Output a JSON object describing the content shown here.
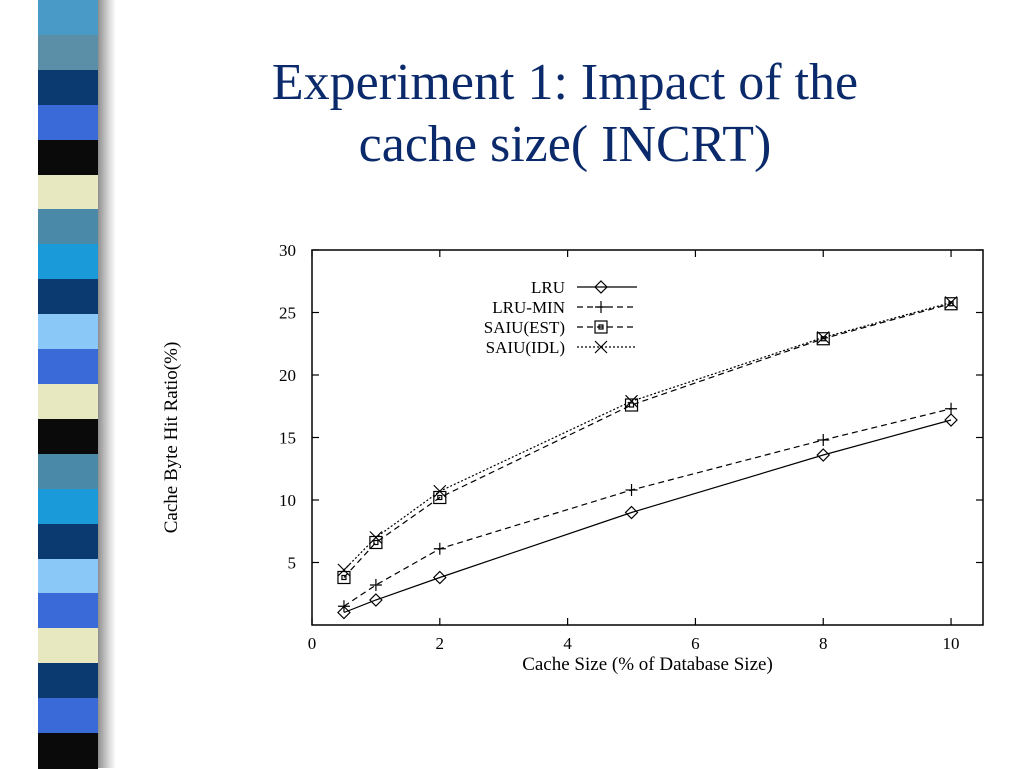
{
  "slide": {
    "title": "Experiment 1: Impact of the\ncache size( INCRT)"
  },
  "stripes": [
    "#4a9ac8",
    "#5b8fa8",
    "#0a3a70",
    "#3a6ad8",
    "#0a0a0a",
    "#e8e8c0",
    "#4a8aa8",
    "#1a9ad8",
    "#0a3a70",
    "#8ac8f8",
    "#3a6ad8",
    "#e8e8c0",
    "#0a0a0a",
    "#4a8aa8",
    "#1a9ad8",
    "#0a3a70",
    "#8ac8f8",
    "#3a6ad8",
    "#e8e8c0",
    "#0a3a70",
    "#3a6ad8",
    "#0a0a0a"
  ],
  "chart_data": {
    "type": "line",
    "title": "",
    "xlabel": "Cache Size (% of Database Size)",
    "ylabel": "Cache Byte Hit Ratio(%)",
    "xlim": [
      0,
      10.5
    ],
    "ylim": [
      0,
      30
    ],
    "xticks": [
      0,
      2,
      4,
      6,
      8,
      10
    ],
    "yticks": [
      5,
      10,
      15,
      20,
      25,
      30
    ],
    "grid": false,
    "legend_position": "top-left",
    "x": [
      0.5,
      1,
      2,
      5,
      8,
      10
    ],
    "series": [
      {
        "name": "LRU",
        "values": [
          1.0,
          2.0,
          3.8,
          9.0,
          13.6,
          16.4
        ],
        "marker": "diamond",
        "dash": "solid"
      },
      {
        "name": "LRU-MIN",
        "values": [
          1.5,
          3.2,
          6.1,
          10.8,
          14.8,
          17.3
        ],
        "marker": "plus",
        "dash": "dashed"
      },
      {
        "name": "SAIU(EST)",
        "values": [
          3.8,
          6.6,
          10.2,
          17.6,
          22.9,
          25.7
        ],
        "marker": "square",
        "dash": "dashed"
      },
      {
        "name": "SAIU(IDL)",
        "values": [
          4.4,
          7.0,
          10.7,
          17.9,
          23.0,
          25.8
        ],
        "marker": "cross",
        "dash": "dotted"
      }
    ]
  }
}
